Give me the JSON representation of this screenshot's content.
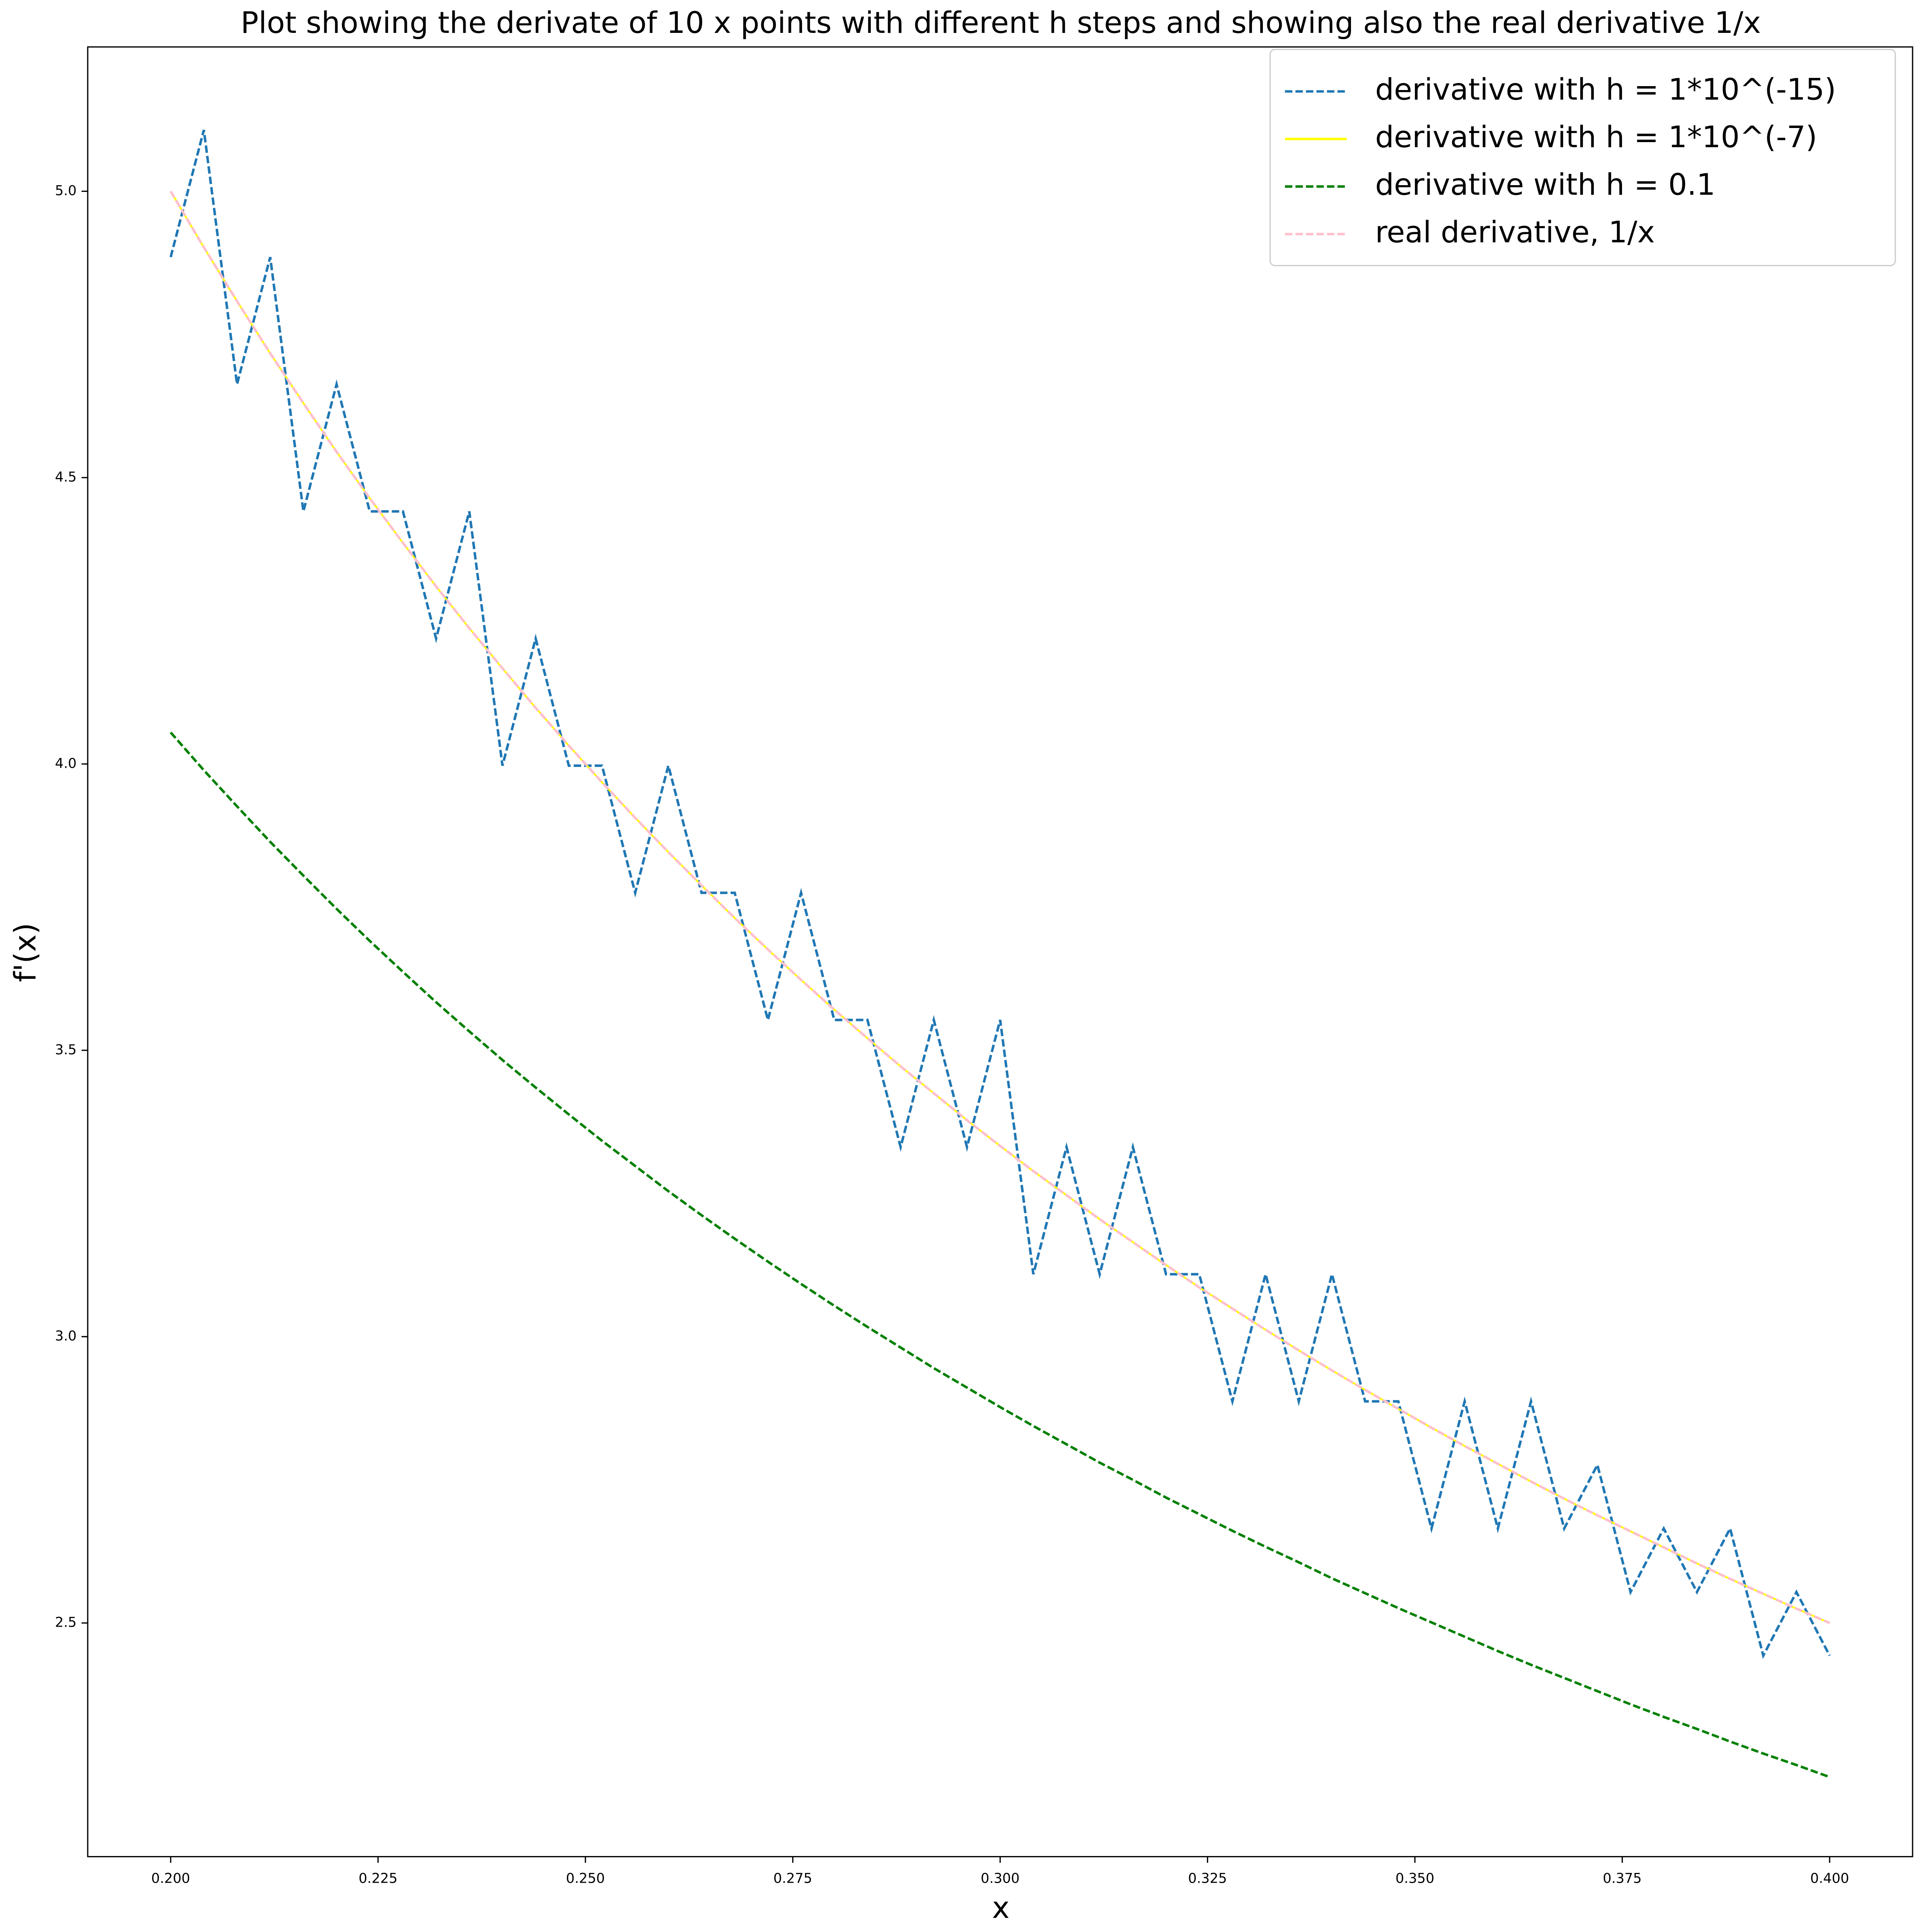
{
  "chart_data": {
    "type": "line",
    "title": "Plot showing the derivate of 10 x points with different h steps and showing also the real derivative 1/x",
    "x_label": "x",
    "y_label": "f'(x)",
    "x": [
      0.2,
      0.204,
      0.208,
      0.212,
      0.216,
      0.22,
      0.224,
      0.228,
      0.232,
      0.236,
      0.24,
      0.244,
      0.248,
      0.252,
      0.256,
      0.26,
      0.264,
      0.268,
      0.272,
      0.276,
      0.28,
      0.284,
      0.288,
      0.292,
      0.296,
      0.3,
      0.304,
      0.308,
      0.312,
      0.316,
      0.32,
      0.324,
      0.328,
      0.332,
      0.336,
      0.34,
      0.344,
      0.348,
      0.352,
      0.356,
      0.36,
      0.364,
      0.368,
      0.372,
      0.376,
      0.38,
      0.384,
      0.388,
      0.392,
      0.396,
      0.4
    ],
    "series": [
      {
        "name": "derivative with h = 1*10^(-15)",
        "color": "#1f77b4",
        "linestyle": "dashed",
        "values": [
          4.885,
          5.107,
          4.663,
          4.885,
          4.441,
          4.663,
          4.441,
          4.441,
          4.219,
          4.441,
          3.997,
          4.219,
          3.997,
          3.997,
          3.775,
          3.997,
          3.775,
          3.775,
          3.553,
          3.775,
          3.553,
          3.553,
          3.331,
          3.553,
          3.331,
          3.553,
          3.109,
          3.331,
          3.109,
          3.331,
          3.109,
          3.109,
          2.887,
          3.109,
          2.887,
          3.109,
          2.887,
          2.887,
          2.665,
          2.887,
          2.665,
          2.887,
          2.665,
          2.776,
          2.554,
          2.665,
          2.554,
          2.665,
          2.443,
          2.554,
          2.443
        ]
      },
      {
        "name": "derivative with h = 1*10^(-7)",
        "color": "#ffff00",
        "linestyle": "solid",
        "values": [
          5.0,
          4.902,
          4.808,
          4.717,
          4.63,
          4.545,
          4.464,
          4.386,
          4.31,
          4.237,
          4.167,
          4.098,
          4.032,
          3.968,
          3.906,
          3.846,
          3.788,
          3.731,
          3.676,
          3.623,
          3.571,
          3.521,
          3.472,
          3.425,
          3.378,
          3.333,
          3.289,
          3.247,
          3.205,
          3.165,
          3.125,
          3.086,
          3.049,
          3.012,
          2.976,
          2.941,
          2.907,
          2.874,
          2.841,
          2.809,
          2.778,
          2.747,
          2.717,
          2.688,
          2.66,
          2.632,
          2.604,
          2.577,
          2.551,
          2.525,
          2.5
        ]
      },
      {
        "name": "derivative with h = 0.1",
        "color": "#008000",
        "linestyle": "dashed",
        "values": [
          4.055,
          3.989,
          3.926,
          3.864,
          3.805,
          3.747,
          3.691,
          3.637,
          3.584,
          3.533,
          3.483,
          3.435,
          3.388,
          3.342,
          3.298,
          3.254,
          3.212,
          3.171,
          3.131,
          3.092,
          3.054,
          3.017,
          2.981,
          2.945,
          2.911,
          2.877,
          2.844,
          2.812,
          2.78,
          2.75,
          2.719,
          2.69,
          2.661,
          2.633,
          2.606,
          2.578,
          2.552,
          2.526,
          2.501,
          2.476,
          2.451,
          2.427,
          2.404,
          2.381,
          2.358,
          2.336,
          2.315,
          2.293,
          2.272,
          2.252,
          2.231
        ]
      },
      {
        "name": "real derivative, 1/x",
        "color": "#ffc0cb",
        "linestyle": "dashed",
        "values": [
          5.0,
          4.902,
          4.808,
          4.717,
          4.63,
          4.545,
          4.464,
          4.386,
          4.31,
          4.237,
          4.167,
          4.098,
          4.032,
          3.968,
          3.906,
          3.846,
          3.788,
          3.731,
          3.676,
          3.623,
          3.571,
          3.521,
          3.472,
          3.425,
          3.378,
          3.333,
          3.289,
          3.247,
          3.205,
          3.165,
          3.125,
          3.086,
          3.049,
          3.012,
          2.976,
          2.941,
          2.907,
          2.874,
          2.841,
          2.809,
          2.778,
          2.747,
          2.717,
          2.688,
          2.66,
          2.632,
          2.604,
          2.577,
          2.551,
          2.525,
          2.5
        ]
      }
    ],
    "xlim": [
      0.19,
      0.41
    ],
    "ylim": [
      2.092,
      5.252
    ],
    "xticks": [
      {
        "value": 0.2,
        "label": "0.200"
      },
      {
        "value": 0.225,
        "label": "0.225"
      },
      {
        "value": 0.25,
        "label": "0.250"
      },
      {
        "value": 0.275,
        "label": "0.275"
      },
      {
        "value": 0.3,
        "label": "0.300"
      },
      {
        "value": 0.325,
        "label": "0.325"
      },
      {
        "value": 0.35,
        "label": "0.350"
      },
      {
        "value": 0.375,
        "label": "0.375"
      },
      {
        "value": 0.4,
        "label": "0.400"
      }
    ],
    "yticks": [
      2.5,
      {
        "value": 3,
        "label": "3.0"
      },
      3.5,
      {
        "value": 4,
        "label": "4.0"
      },
      4.5,
      {
        "value": 5,
        "label": "5.0"
      }
    ],
    "grid": false,
    "legend": "upper right"
  }
}
